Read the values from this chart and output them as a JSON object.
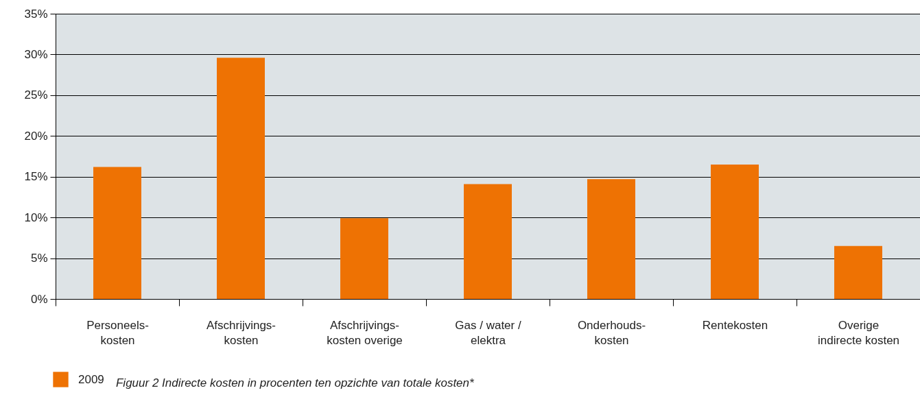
{
  "chart_data": {
    "type": "bar",
    "categories": [
      "Personeels-\nkosten",
      "Afschrijvings-\nkosten",
      "Afschrijvings-\nkosten overige",
      "Gas / water /\nelektra",
      "Onderhouds-\nkosten",
      "Rentekosten",
      "Overige\nindirecte kosten"
    ],
    "series": [
      {
        "name": "2009",
        "color": "#ee7203",
        "values": [
          16.2,
          29.6,
          9.9,
          14.1,
          14.7,
          16.5,
          6.5
        ]
      }
    ],
    "ylim": [
      0,
      35
    ],
    "yticks": [
      {
        "value": 0,
        "label": "0%"
      },
      {
        "value": 5,
        "label": "5%"
      },
      {
        "value": 10,
        "label": "10%"
      },
      {
        "value": 15,
        "label": "15%"
      },
      {
        "value": 20,
        "label": "20%"
      },
      {
        "value": 25,
        "label": "25%"
      },
      {
        "value": 30,
        "label": "30%"
      },
      {
        "value": 35,
        "label": "35%"
      }
    ],
    "grid": "y",
    "legend": "bottom left",
    "annotations": [
      "Figuur 2 Indirecte kosten in procenten ten opzichte van totale kosten*"
    ]
  }
}
